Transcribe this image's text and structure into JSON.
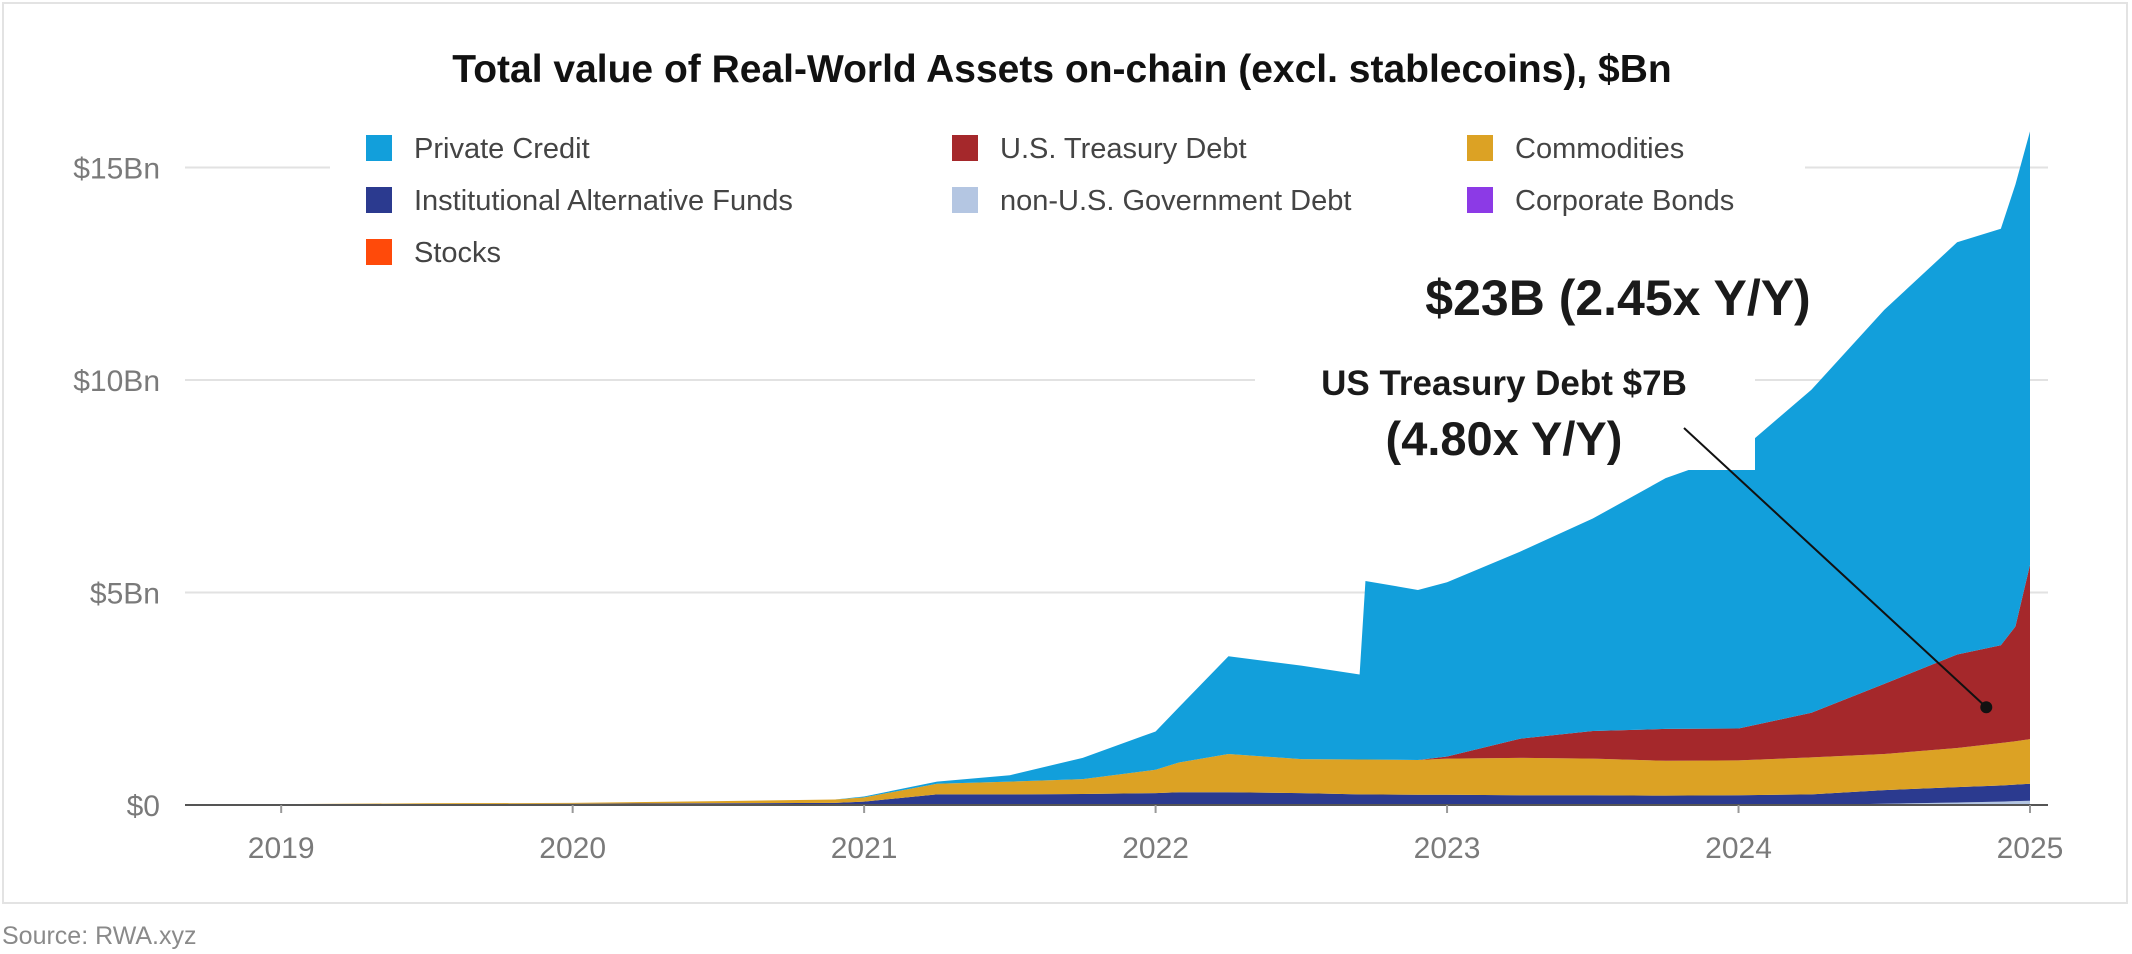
{
  "source": "Source: RWA.xyz",
  "chart_data": {
    "type": "area",
    "stacked": true,
    "title": "Total value of Real-World Assets on-chain (excl. stablecoins), $Bn",
    "xlabel": "",
    "ylabel": "",
    "x_ticks": [
      "2019",
      "2020",
      "2021",
      "2022",
      "2023",
      "2024",
      "2025"
    ],
    "y_ticks": [
      "$0",
      "$5Bn",
      "$10Bn",
      "$15Bn"
    ],
    "ylim": [
      0,
      15.5
    ],
    "xlim": [
      2018.67,
      2025.0
    ],
    "grid": true,
    "legend_position": "top",
    "legend": [
      {
        "name": "Private Credit",
        "color": "#129fdb"
      },
      {
        "name": "U.S. Treasury Debt",
        "color": "#a5282b"
      },
      {
        "name": "Commodities",
        "color": "#dca224"
      },
      {
        "name": "Institutional Alternative Funds",
        "color": "#2b3a8f"
      },
      {
        "name": "non-U.S. Government Debt",
        "color": "#b4c6e2"
      },
      {
        "name": "Corporate Bonds",
        "color": "#8c3ae6"
      },
      {
        "name": "Stocks",
        "color": "#ff4a0a"
      }
    ],
    "x": [
      2018.67,
      2019.0,
      2019.5,
      2020.0,
      2020.5,
      2020.9,
      2021.0,
      2021.25,
      2021.5,
      2021.75,
      2022.0,
      2022.08,
      2022.25,
      2022.5,
      2022.7,
      2022.72,
      2022.9,
      2023.0,
      2023.25,
      2023.5,
      2023.75,
      2024.0,
      2024.25,
      2024.5,
      2024.75,
      2024.9,
      2024.95,
      2025.0
    ],
    "series": [
      {
        "name": "non-U.S. Government Debt",
        "values": [
          0,
          0,
          0,
          0,
          0,
          0,
          0,
          0,
          0,
          0,
          0,
          0,
          0,
          0,
          0,
          0,
          0,
          0,
          0,
          0,
          0,
          0,
          0,
          0.03,
          0.06,
          0.08,
          0.09,
          0.1
        ]
      },
      {
        "name": "Institutional Alternative Funds",
        "values": [
          0,
          0.01,
          0.02,
          0.03,
          0.04,
          0.05,
          0.08,
          0.25,
          0.25,
          0.26,
          0.28,
          0.3,
          0.3,
          0.28,
          0.25,
          0.25,
          0.24,
          0.24,
          0.23,
          0.23,
          0.22,
          0.23,
          0.25,
          0.32,
          0.36,
          0.38,
          0.39,
          0.4
        ]
      },
      {
        "name": "Commodities",
        "values": [
          0,
          0.01,
          0.02,
          0.02,
          0.05,
          0.08,
          0.1,
          0.25,
          0.3,
          0.35,
          0.55,
          0.7,
          0.9,
          0.8,
          0.82,
          0.82,
          0.82,
          0.85,
          0.88,
          0.86,
          0.82,
          0.82,
          0.87,
          0.85,
          0.92,
          1.0,
          1.02,
          1.05
        ]
      },
      {
        "name": "U.S. Treasury Debt",
        "values": [
          0,
          0,
          0,
          0,
          0,
          0,
          0,
          0,
          0,
          0,
          0,
          0,
          0,
          0,
          0,
          0,
          0,
          0.05,
          0.45,
          0.65,
          0.75,
          0.75,
          1.05,
          1.65,
          2.2,
          2.3,
          2.7,
          4.1
        ]
      },
      {
        "name": "Private Credit",
        "values": [
          0,
          0,
          0,
          0,
          0,
          0,
          0.02,
          0.05,
          0.15,
          0.5,
          0.9,
          1.3,
          2.3,
          2.2,
          2.0,
          4.2,
          4.0,
          4.1,
          4.4,
          5.0,
          5.9,
          6.5,
          7.6,
          8.8,
          9.7,
          9.8,
          10.4,
          10.2
        ]
      },
      {
        "name": "Corporate Bonds",
        "values": [
          0,
          0,
          0,
          0,
          0,
          0,
          0,
          0,
          0,
          0,
          0,
          0,
          0,
          0,
          0,
          0,
          0,
          0,
          0,
          0,
          0,
          0,
          0,
          0,
          0,
          0,
          0,
          0
        ]
      },
      {
        "name": "Stocks",
        "values": [
          0,
          0,
          0,
          0,
          0,
          0,
          0,
          0,
          0,
          0,
          0,
          0,
          0,
          0,
          0,
          0,
          0,
          0,
          0,
          0,
          0,
          0,
          0,
          0,
          0,
          0,
          0,
          0
        ]
      }
    ],
    "annotations": [
      {
        "text": "$23B (2.45x Y/Y)"
      },
      {
        "lines": [
          "US Treasury Debt $7B",
          "(4.80x Y/Y)"
        ],
        "points_to": {
          "series": "U.S. Treasury Debt",
          "x": 2024.85,
          "y": 2.3
        }
      }
    ]
  }
}
